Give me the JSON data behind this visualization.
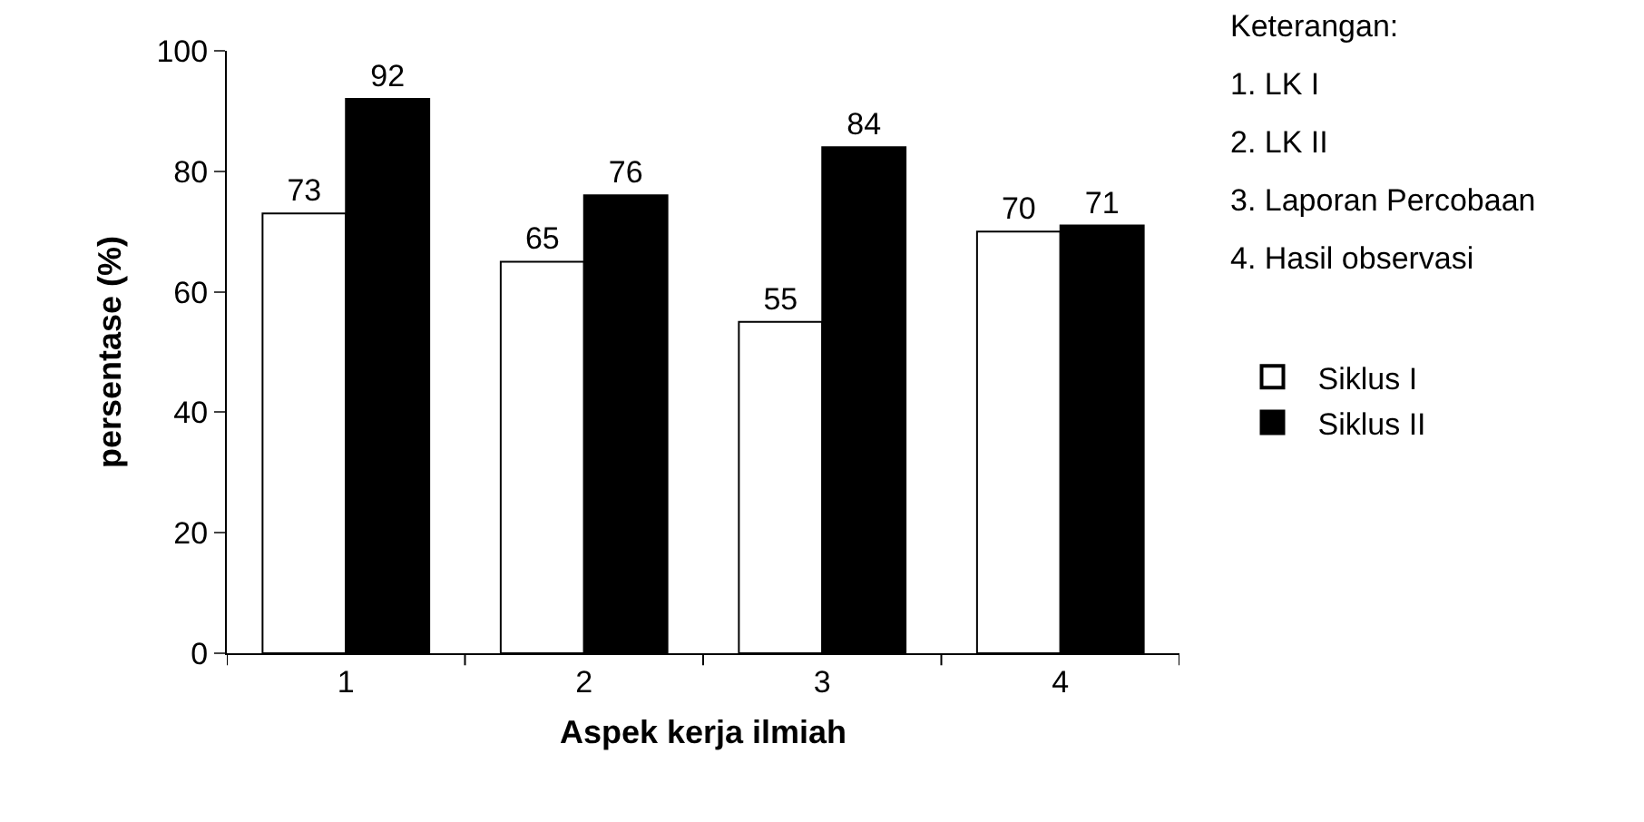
{
  "chart_data": {
    "type": "bar",
    "xlabel": "Aspek kerja ilmiah",
    "ylabel": "persentase (%)",
    "categories": [
      "1",
      "2",
      "3",
      "4"
    ],
    "series": [
      {
        "name": "Siklus I",
        "color": "#ffffff",
        "values": [
          73,
          65,
          55,
          70
        ]
      },
      {
        "name": "Siklus II",
        "color": "#000000",
        "values": [
          92,
          76,
          84,
          71
        ]
      }
    ],
    "ylim": [
      0,
      100
    ],
    "yticks": [
      0,
      20,
      40,
      60,
      80,
      100
    ],
    "grid": false,
    "legend": "right",
    "data_labels": true,
    "annotations": [
      "Keterangan:",
      "1. LK I",
      "2. LK II",
      "3. Laporan Percobaan",
      "4. Hasil observasi"
    ]
  }
}
